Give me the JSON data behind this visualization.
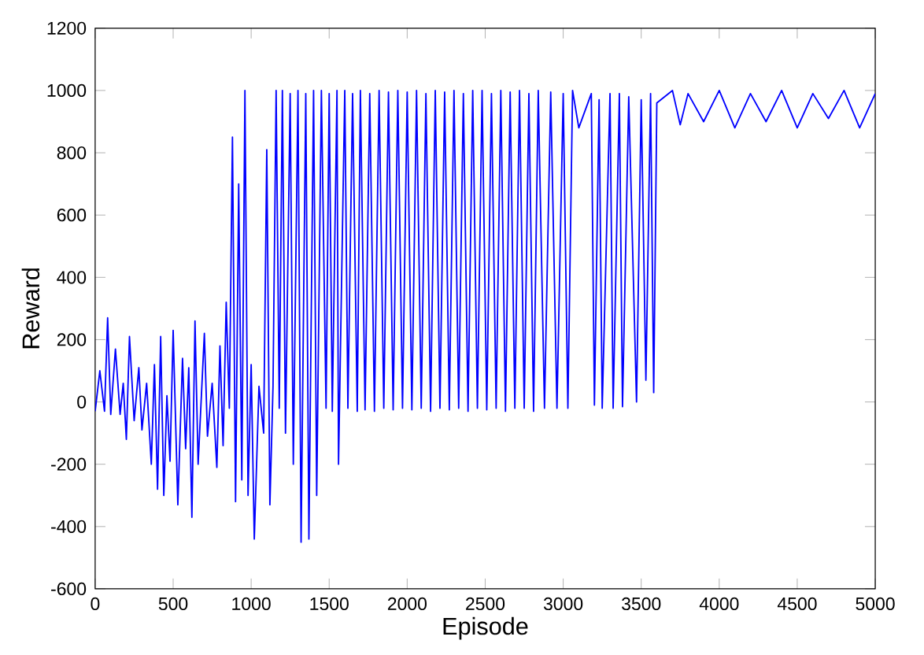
{
  "chart_data": {
    "type": "line",
    "xlabel": "Episode",
    "ylabel": "Reward",
    "xlim": [
      0,
      5000
    ],
    "ylim": [
      -600,
      1200
    ],
    "xticks": [
      0,
      500,
      1000,
      1500,
      2000,
      2500,
      3000,
      3500,
      4000,
      4500,
      5000
    ],
    "yticks": [
      -600,
      -400,
      -200,
      0,
      200,
      400,
      600,
      800,
      1000,
      1200
    ],
    "grid": false,
    "marker": "none",
    "line_style": "solid",
    "series": [
      {
        "color": "#0000ff",
        "x": [
          0,
          30,
          60,
          80,
          100,
          130,
          160,
          180,
          200,
          220,
          250,
          280,
          300,
          330,
          360,
          380,
          400,
          420,
          440,
          460,
          480,
          500,
          530,
          560,
          580,
          600,
          620,
          640,
          660,
          700,
          720,
          750,
          780,
          800,
          820,
          840,
          860,
          880,
          900,
          920,
          940,
          960,
          980,
          1000,
          1020,
          1050,
          1080,
          1100,
          1120,
          1140,
          1160,
          1180,
          1200,
          1220,
          1250,
          1270,
          1300,
          1320,
          1350,
          1370,
          1400,
          1420,
          1450,
          1480,
          1500,
          1520,
          1550,
          1560,
          1600,
          1620,
          1650,
          1680,
          1700,
          1730,
          1760,
          1790,
          1820,
          1850,
          1880,
          1910,
          1940,
          1970,
          2000,
          2030,
          2060,
          2090,
          2120,
          2150,
          2180,
          2210,
          2240,
          2270,
          2300,
          2330,
          2360,
          2390,
          2420,
          2450,
          2480,
          2510,
          2540,
          2570,
          2600,
          2630,
          2660,
          2690,
          2720,
          2750,
          2780,
          2810,
          2840,
          2880,
          2920,
          2960,
          3000,
          3030,
          3060,
          3100,
          3180,
          3200,
          3230,
          3250,
          3300,
          3320,
          3360,
          3380,
          3420,
          3470,
          3500,
          3530,
          3560,
          3580,
          3600,
          3700,
          3750,
          3800,
          3900,
          4000,
          4100,
          4200,
          4300,
          4400,
          4500,
          4600,
          4700,
          4800,
          4900,
          5000
        ],
        "values": [
          -30,
          100,
          -30,
          270,
          -40,
          170,
          -40,
          60,
          -120,
          210,
          -60,
          110,
          -90,
          60,
          -200,
          120,
          -280,
          210,
          -300,
          20,
          -190,
          230,
          -330,
          140,
          -150,
          110,
          -370,
          260,
          -200,
          220,
          -110,
          60,
          -210,
          180,
          -140,
          320,
          -20,
          850,
          -320,
          700,
          -250,
          1000,
          -300,
          120,
          -440,
          50,
          -100,
          810,
          -330,
          50,
          1000,
          -20,
          1000,
          -100,
          990,
          -200,
          1000,
          -450,
          990,
          -440,
          1000,
          -300,
          1000,
          -20,
          990,
          -30,
          1000,
          -200,
          1000,
          -20,
          990,
          -30,
          1000,
          -25,
          990,
          -30,
          1000,
          -20,
          995,
          -25,
          1000,
          -20,
          995,
          -25,
          1000,
          -20,
          990,
          -30,
          1000,
          -20,
          995,
          -25,
          1000,
          -20,
          990,
          -30,
          1000,
          -20,
          1000,
          -25,
          990,
          -20,
          1000,
          -30,
          995,
          -20,
          1000,
          -20,
          990,
          -30,
          1000,
          -20,
          995,
          -20,
          990,
          -20,
          1000,
          880,
          990,
          -10,
          970,
          -20,
          990,
          -20,
          990,
          -15,
          980,
          0,
          970,
          70,
          990,
          30,
          960,
          1000,
          890,
          990,
          900,
          1000,
          880,
          990,
          900,
          1000,
          880,
          990,
          910,
          1000,
          880,
          990
        ]
      }
    ]
  }
}
